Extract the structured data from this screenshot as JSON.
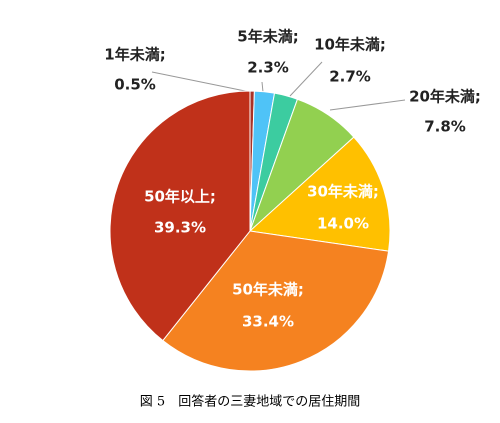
{
  "chart_data": {
    "type": "pie",
    "caption": "図 5　回答者の三妻地域での居住期間",
    "categories": [
      "1年未満;",
      "5年未満;",
      "10年未満;",
      "20年未満;",
      "30年未満;",
      "50年未満;",
      "50年以上;"
    ],
    "values": [
      0.5,
      2.3,
      2.7,
      7.8,
      14.0,
      33.4,
      39.3
    ],
    "value_labels": [
      "0.5%",
      "2.3%",
      "2.7%",
      "7.8%",
      "14.0%",
      "33.4%",
      "39.3%"
    ],
    "colors": [
      "#a93226",
      "#4fc3f7",
      "#3ccca0",
      "#92d050",
      "#ffc000",
      "#f58220",
      "#c0311a"
    ]
  }
}
